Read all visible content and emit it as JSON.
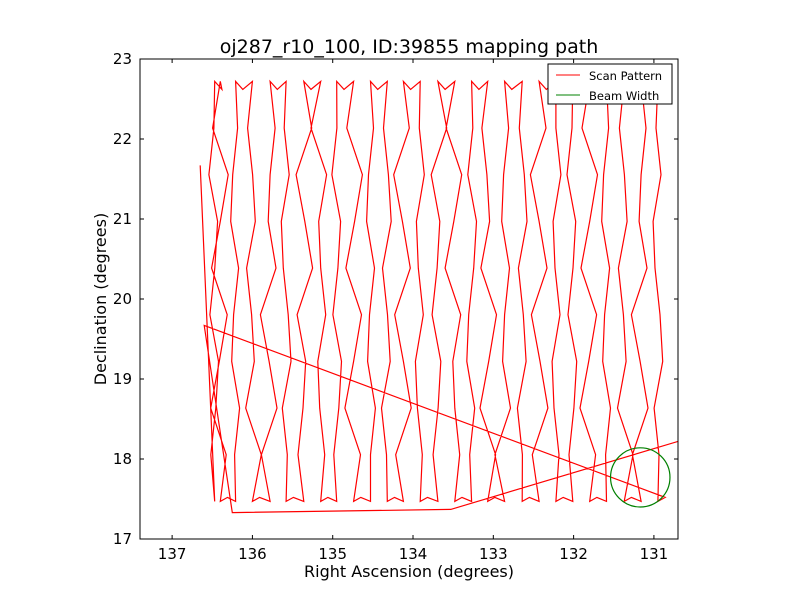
{
  "chart_data": {
    "type": "line",
    "title": "oj287_r10_100, ID:39855 mapping path",
    "xlabel": "Right Ascension (degrees)",
    "ylabel": "Declination (degrees)",
    "xlim": [
      137.4,
      130.7
    ],
    "ylim": [
      17,
      23
    ],
    "xticks": [
      137,
      136,
      135,
      134,
      133,
      132,
      131
    ],
    "yticks": [
      17,
      18,
      19,
      20,
      21,
      22,
      23
    ],
    "x_inverted": true,
    "grid": false,
    "legend_position": "top-right",
    "series": [
      {
        "name": "Scan Pattern",
        "color": "#ff0000",
        "scan_columns_ra": [
          136.47,
          136.4,
          136.21,
          136.0,
          135.78,
          135.58,
          135.36,
          135.15,
          134.95,
          134.74,
          134.53,
          134.32,
          134.12,
          133.91,
          133.69,
          133.48,
          133.27,
          133.07,
          132.86,
          132.64,
          132.43,
          132.22,
          132.01,
          131.8,
          131.59,
          131.37,
          131.16,
          130.95
        ],
        "dec_range": [
          17.47,
          22.72
        ],
        "start_point": [
          136.65,
          21.67
        ],
        "extra_points": [
          [
            136.6,
            19.67
          ],
          [
            136.25,
            17.33
          ],
          [
            133.53,
            17.37
          ],
          [
            130.7,
            18.22
          ]
        ]
      },
      {
        "name": "Beam Width",
        "color": "#008000",
        "center": [
          131.17,
          17.77
        ],
        "radius_deg": 0.37
      }
    ]
  }
}
